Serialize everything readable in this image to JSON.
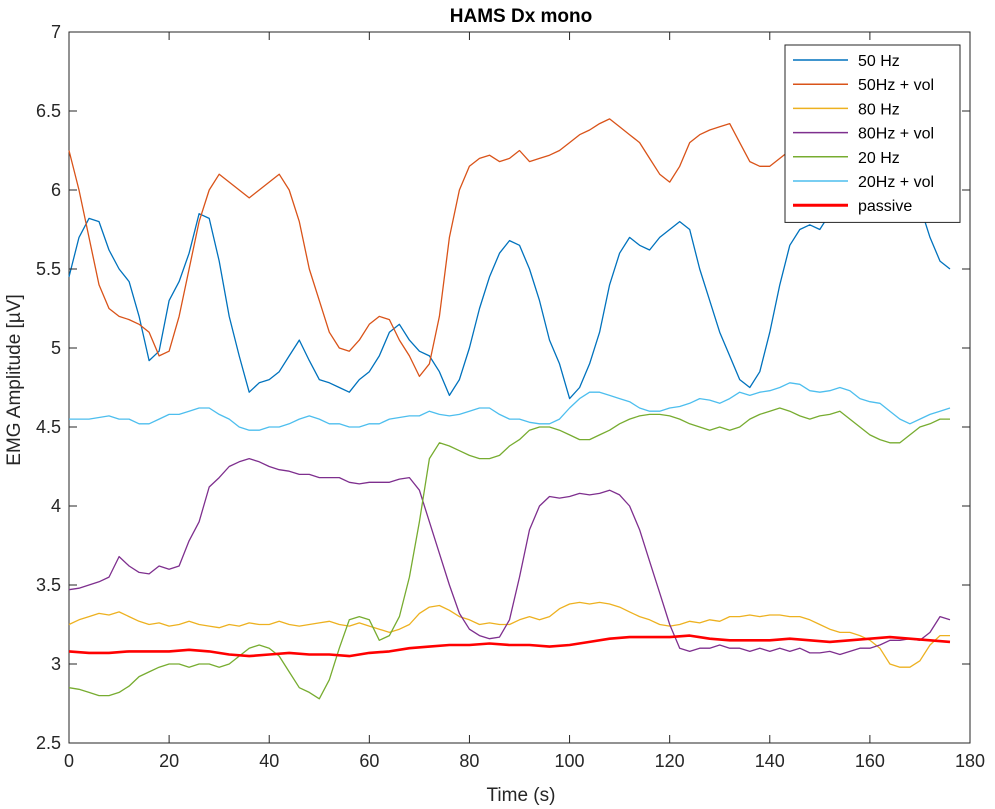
{
  "chart_data": {
    "type": "line",
    "title": "HAMS Dx mono",
    "xlabel": "Time (s)",
    "ylabel": "EMG Amplitude [µV]",
    "xlim": [
      0,
      180
    ],
    "ylim": [
      2.5,
      7
    ],
    "xticks": [
      "0",
      "20",
      "40",
      "60",
      "80",
      "100",
      "120",
      "140",
      "160",
      "180"
    ],
    "yticks": [
      "2.5",
      "3",
      "3.5",
      "4",
      "4.5",
      "5",
      "5.5",
      "6",
      "6.5",
      "7"
    ],
    "grid": false,
    "legend_position": "top-right",
    "series": [
      {
        "name": "50 Hz",
        "color": "#0072BD",
        "x": [
          0,
          2,
          4,
          6,
          8,
          10,
          12,
          14,
          16,
          18,
          20,
          22,
          24,
          26,
          28,
          30,
          32,
          34,
          36,
          38,
          40,
          42,
          44,
          46,
          48,
          50,
          52,
          54,
          56,
          58,
          60,
          62,
          64,
          66,
          68,
          70,
          72,
          74,
          76,
          78,
          80,
          82,
          84,
          86,
          88,
          90,
          92,
          94,
          96,
          98,
          100,
          102,
          104,
          106,
          108,
          110,
          112,
          114,
          116,
          118,
          120,
          122,
          124,
          126,
          128,
          130,
          132,
          134,
          136,
          138,
          140,
          142,
          144,
          146,
          148,
          150,
          152,
          154,
          156,
          158,
          160,
          162,
          164,
          166,
          168,
          170,
          172,
          174,
          176
        ],
        "y": [
          5.45,
          5.7,
          5.82,
          5.8,
          5.62,
          5.5,
          5.42,
          5.2,
          4.92,
          4.98,
          5.3,
          5.42,
          5.6,
          5.85,
          5.82,
          5.55,
          5.2,
          4.95,
          4.72,
          4.78,
          4.8,
          4.85,
          4.95,
          5.05,
          4.92,
          4.8,
          4.78,
          4.75,
          4.72,
          4.8,
          4.85,
          4.95,
          5.1,
          5.15,
          5.05,
          4.98,
          4.95,
          4.85,
          4.7,
          4.8,
          5.0,
          5.25,
          5.45,
          5.6,
          5.68,
          5.65,
          5.5,
          5.3,
          5.05,
          4.9,
          4.68,
          4.75,
          4.9,
          5.1,
          5.4,
          5.6,
          5.7,
          5.65,
          5.62,
          5.7,
          5.75,
          5.8,
          5.75,
          5.5,
          5.3,
          5.1,
          4.95,
          4.8,
          4.75,
          4.85,
          5.1,
          5.4,
          5.65,
          5.75,
          5.78,
          5.75,
          5.85,
          5.9,
          5.95,
          5.98,
          5.95,
          5.9,
          5.85,
          5.85,
          5.9,
          5.9,
          5.7,
          5.55,
          5.5
        ]
      },
      {
        "name": "50Hz + vol",
        "color": "#D95319",
        "x": [
          0,
          2,
          4,
          6,
          8,
          10,
          12,
          14,
          16,
          18,
          20,
          22,
          24,
          26,
          28,
          30,
          32,
          34,
          36,
          38,
          40,
          42,
          44,
          46,
          48,
          50,
          52,
          54,
          56,
          58,
          60,
          62,
          64,
          66,
          68,
          70,
          72,
          74,
          76,
          78,
          80,
          82,
          84,
          86,
          88,
          90,
          92,
          94,
          96,
          98,
          100,
          102,
          104,
          106,
          108,
          110,
          112,
          114,
          116,
          118,
          120,
          122,
          124,
          126,
          128,
          130,
          132,
          134,
          136,
          138,
          140,
          142,
          144,
          146,
          148,
          150,
          152,
          154,
          156,
          158,
          160,
          162,
          164
        ],
        "y": [
          6.25,
          6.0,
          5.7,
          5.4,
          5.25,
          5.2,
          5.18,
          5.15,
          5.1,
          4.95,
          4.98,
          5.2,
          5.5,
          5.8,
          6.0,
          6.1,
          6.05,
          6.0,
          5.95,
          6.0,
          6.05,
          6.1,
          6.0,
          5.8,
          5.5,
          5.3,
          5.1,
          5.0,
          4.98,
          5.05,
          5.15,
          5.2,
          5.18,
          5.05,
          4.95,
          4.82,
          4.9,
          5.2,
          5.7,
          6.0,
          6.15,
          6.2,
          6.22,
          6.18,
          6.2,
          6.25,
          6.18,
          6.2,
          6.22,
          6.25,
          6.3,
          6.35,
          6.38,
          6.42,
          6.45,
          6.4,
          6.35,
          6.3,
          6.2,
          6.1,
          6.05,
          6.15,
          6.3,
          6.35,
          6.38,
          6.4,
          6.42,
          6.3,
          6.18,
          6.15,
          6.15,
          6.2,
          6.25,
          6.22,
          6.25,
          6.28,
          6.3,
          6.35,
          6.4,
          6.42,
          6.4,
          6.35,
          6.3
        ]
      },
      {
        "name": "80 Hz",
        "color": "#EDB120",
        "x": [
          0,
          2,
          4,
          6,
          8,
          10,
          12,
          14,
          16,
          18,
          20,
          22,
          24,
          26,
          28,
          30,
          32,
          34,
          36,
          38,
          40,
          42,
          44,
          46,
          48,
          50,
          52,
          54,
          56,
          58,
          60,
          62,
          64,
          66,
          68,
          70,
          72,
          74,
          76,
          78,
          80,
          82,
          84,
          86,
          88,
          90,
          92,
          94,
          96,
          98,
          100,
          102,
          104,
          106,
          108,
          110,
          112,
          114,
          116,
          118,
          120,
          122,
          124,
          126,
          128,
          130,
          132,
          134,
          136,
          138,
          140,
          142,
          144,
          146,
          148,
          150,
          152,
          154,
          156,
          158,
          160,
          162,
          164,
          166,
          168,
          170,
          172,
          174,
          176
        ],
        "y": [
          3.25,
          3.28,
          3.3,
          3.32,
          3.31,
          3.33,
          3.3,
          3.27,
          3.25,
          3.26,
          3.24,
          3.25,
          3.27,
          3.25,
          3.24,
          3.23,
          3.25,
          3.24,
          3.26,
          3.25,
          3.25,
          3.27,
          3.25,
          3.24,
          3.25,
          3.26,
          3.27,
          3.25,
          3.24,
          3.26,
          3.24,
          3.22,
          3.2,
          3.22,
          3.25,
          3.32,
          3.36,
          3.37,
          3.34,
          3.3,
          3.28,
          3.25,
          3.26,
          3.25,
          3.25,
          3.28,
          3.3,
          3.28,
          3.3,
          3.35,
          3.38,
          3.39,
          3.38,
          3.39,
          3.38,
          3.36,
          3.33,
          3.3,
          3.28,
          3.25,
          3.24,
          3.25,
          3.27,
          3.26,
          3.28,
          3.27,
          3.3,
          3.3,
          3.31,
          3.3,
          3.31,
          3.31,
          3.3,
          3.3,
          3.28,
          3.25,
          3.22,
          3.2,
          3.2,
          3.18,
          3.15,
          3.1,
          3.0,
          2.98,
          2.98,
          3.02,
          3.12,
          3.18,
          3.18
        ]
      },
      {
        "name": "80Hz + vol",
        "color": "#7E2F8E",
        "x": [
          0,
          2,
          4,
          6,
          8,
          10,
          12,
          14,
          16,
          18,
          20,
          22,
          24,
          26,
          28,
          30,
          32,
          34,
          36,
          38,
          40,
          42,
          44,
          46,
          48,
          50,
          52,
          54,
          56,
          58,
          60,
          62,
          64,
          66,
          68,
          70,
          72,
          74,
          76,
          78,
          80,
          82,
          84,
          86,
          88,
          90,
          92,
          94,
          96,
          98,
          100,
          102,
          104,
          106,
          108,
          110,
          112,
          114,
          116,
          118,
          120,
          122,
          124,
          126,
          128,
          130,
          132,
          134,
          136,
          138,
          140,
          142,
          144,
          146,
          148,
          150,
          152,
          154,
          156,
          158,
          160,
          162,
          164,
          166,
          168,
          170,
          172,
          174,
          176
        ],
        "y": [
          3.47,
          3.48,
          3.5,
          3.52,
          3.55,
          3.68,
          3.62,
          3.58,
          3.57,
          3.62,
          3.6,
          3.62,
          3.78,
          3.9,
          4.12,
          4.18,
          4.25,
          4.28,
          4.3,
          4.28,
          4.25,
          4.23,
          4.22,
          4.2,
          4.2,
          4.18,
          4.18,
          4.18,
          4.15,
          4.14,
          4.15,
          4.15,
          4.15,
          4.17,
          4.18,
          4.1,
          3.9,
          3.7,
          3.5,
          3.32,
          3.22,
          3.18,
          3.16,
          3.17,
          3.28,
          3.55,
          3.85,
          4.0,
          4.06,
          4.05,
          4.06,
          4.08,
          4.07,
          4.08,
          4.1,
          4.07,
          4.0,
          3.85,
          3.65,
          3.45,
          3.25,
          3.1,
          3.08,
          3.1,
          3.1,
          3.12,
          3.1,
          3.1,
          3.08,
          3.1,
          3.08,
          3.1,
          3.08,
          3.1,
          3.07,
          3.07,
          3.08,
          3.06,
          3.08,
          3.1,
          3.1,
          3.12,
          3.15,
          3.15,
          3.16,
          3.15,
          3.2,
          3.3,
          3.28
        ]
      },
      {
        "name": "20 Hz",
        "color": "#77AC30",
        "x": [
          0,
          2,
          4,
          6,
          8,
          10,
          12,
          14,
          16,
          18,
          20,
          22,
          24,
          26,
          28,
          30,
          32,
          34,
          36,
          38,
          40,
          42,
          44,
          46,
          48,
          50,
          52,
          54,
          56,
          58,
          60,
          62,
          64,
          66,
          68,
          70,
          72,
          74,
          76,
          78,
          80,
          82,
          84,
          86,
          88,
          90,
          92,
          94,
          96,
          98,
          100,
          102,
          104,
          106,
          108,
          110,
          112,
          114,
          116,
          118,
          120,
          122,
          124,
          126,
          128,
          130,
          132,
          134,
          136,
          138,
          140,
          142,
          144,
          146,
          148,
          150,
          152,
          154,
          156,
          158,
          160,
          162,
          164,
          166,
          168,
          170,
          172,
          174,
          176
        ],
        "y": [
          2.85,
          2.84,
          2.82,
          2.8,
          2.8,
          2.82,
          2.86,
          2.92,
          2.95,
          2.98,
          3.0,
          3.0,
          2.98,
          3.0,
          3.0,
          2.98,
          3.0,
          3.05,
          3.1,
          3.12,
          3.1,
          3.05,
          2.95,
          2.85,
          2.82,
          2.78,
          2.9,
          3.1,
          3.28,
          3.3,
          3.28,
          3.15,
          3.18,
          3.3,
          3.55,
          3.9,
          4.3,
          4.4,
          4.38,
          4.35,
          4.32,
          4.3,
          4.3,
          4.32,
          4.38,
          4.42,
          4.48,
          4.5,
          4.5,
          4.48,
          4.45,
          4.42,
          4.42,
          4.45,
          4.48,
          4.52,
          4.55,
          4.57,
          4.58,
          4.58,
          4.57,
          4.55,
          4.52,
          4.5,
          4.48,
          4.5,
          4.48,
          4.5,
          4.55,
          4.58,
          4.6,
          4.62,
          4.6,
          4.57,
          4.55,
          4.57,
          4.58,
          4.6,
          4.55,
          4.5,
          4.45,
          4.42,
          4.4,
          4.4,
          4.45,
          4.5,
          4.52,
          4.55,
          4.55
        ]
      },
      {
        "name": "20Hz + vol",
        "color": "#4DBEEE",
        "x": [
          0,
          2,
          4,
          6,
          8,
          10,
          12,
          14,
          16,
          18,
          20,
          22,
          24,
          26,
          28,
          30,
          32,
          34,
          36,
          38,
          40,
          42,
          44,
          46,
          48,
          50,
          52,
          54,
          56,
          58,
          60,
          62,
          64,
          66,
          68,
          70,
          72,
          74,
          76,
          78,
          80,
          82,
          84,
          86,
          88,
          90,
          92,
          94,
          96,
          98,
          100,
          102,
          104,
          106,
          108,
          110,
          112,
          114,
          116,
          118,
          120,
          122,
          124,
          126,
          128,
          130,
          132,
          134,
          136,
          138,
          140,
          142,
          144,
          146,
          148,
          150,
          152,
          154,
          156,
          158,
          160,
          162,
          164,
          166,
          168,
          170,
          172,
          174,
          176
        ],
        "y": [
          4.55,
          4.55,
          4.55,
          4.56,
          4.57,
          4.55,
          4.55,
          4.52,
          4.52,
          4.55,
          4.58,
          4.58,
          4.6,
          4.62,
          4.62,
          4.58,
          4.55,
          4.5,
          4.48,
          4.48,
          4.5,
          4.5,
          4.52,
          4.55,
          4.57,
          4.55,
          4.52,
          4.52,
          4.5,
          4.5,
          4.52,
          4.52,
          4.55,
          4.56,
          4.57,
          4.57,
          4.6,
          4.58,
          4.57,
          4.58,
          4.6,
          4.62,
          4.62,
          4.58,
          4.55,
          4.55,
          4.53,
          4.52,
          4.52,
          4.55,
          4.62,
          4.68,
          4.72,
          4.72,
          4.7,
          4.68,
          4.66,
          4.62,
          4.6,
          4.6,
          4.62,
          4.63,
          4.65,
          4.68,
          4.67,
          4.65,
          4.68,
          4.72,
          4.7,
          4.72,
          4.73,
          4.75,
          4.78,
          4.77,
          4.73,
          4.72,
          4.73,
          4.75,
          4.73,
          4.68,
          4.66,
          4.65,
          4.6,
          4.55,
          4.52,
          4.55,
          4.58,
          4.6,
          4.62
        ]
      },
      {
        "name": "passive",
        "color": "#FF0000",
        "x": [
          0,
          4,
          8,
          12,
          16,
          20,
          24,
          28,
          32,
          36,
          40,
          44,
          48,
          52,
          56,
          60,
          64,
          68,
          72,
          76,
          80,
          84,
          88,
          92,
          96,
          100,
          104,
          108,
          112,
          116,
          120,
          124,
          128,
          132,
          136,
          140,
          144,
          148,
          152,
          156,
          160,
          164,
          168,
          172,
          176
        ],
        "y": [
          3.08,
          3.07,
          3.07,
          3.08,
          3.08,
          3.08,
          3.09,
          3.08,
          3.06,
          3.05,
          3.06,
          3.07,
          3.06,
          3.06,
          3.05,
          3.07,
          3.08,
          3.1,
          3.11,
          3.12,
          3.12,
          3.13,
          3.12,
          3.12,
          3.11,
          3.12,
          3.14,
          3.16,
          3.17,
          3.17,
          3.17,
          3.18,
          3.16,
          3.15,
          3.15,
          3.15,
          3.16,
          3.15,
          3.14,
          3.15,
          3.16,
          3.17,
          3.16,
          3.15,
          3.14
        ]
      }
    ]
  }
}
